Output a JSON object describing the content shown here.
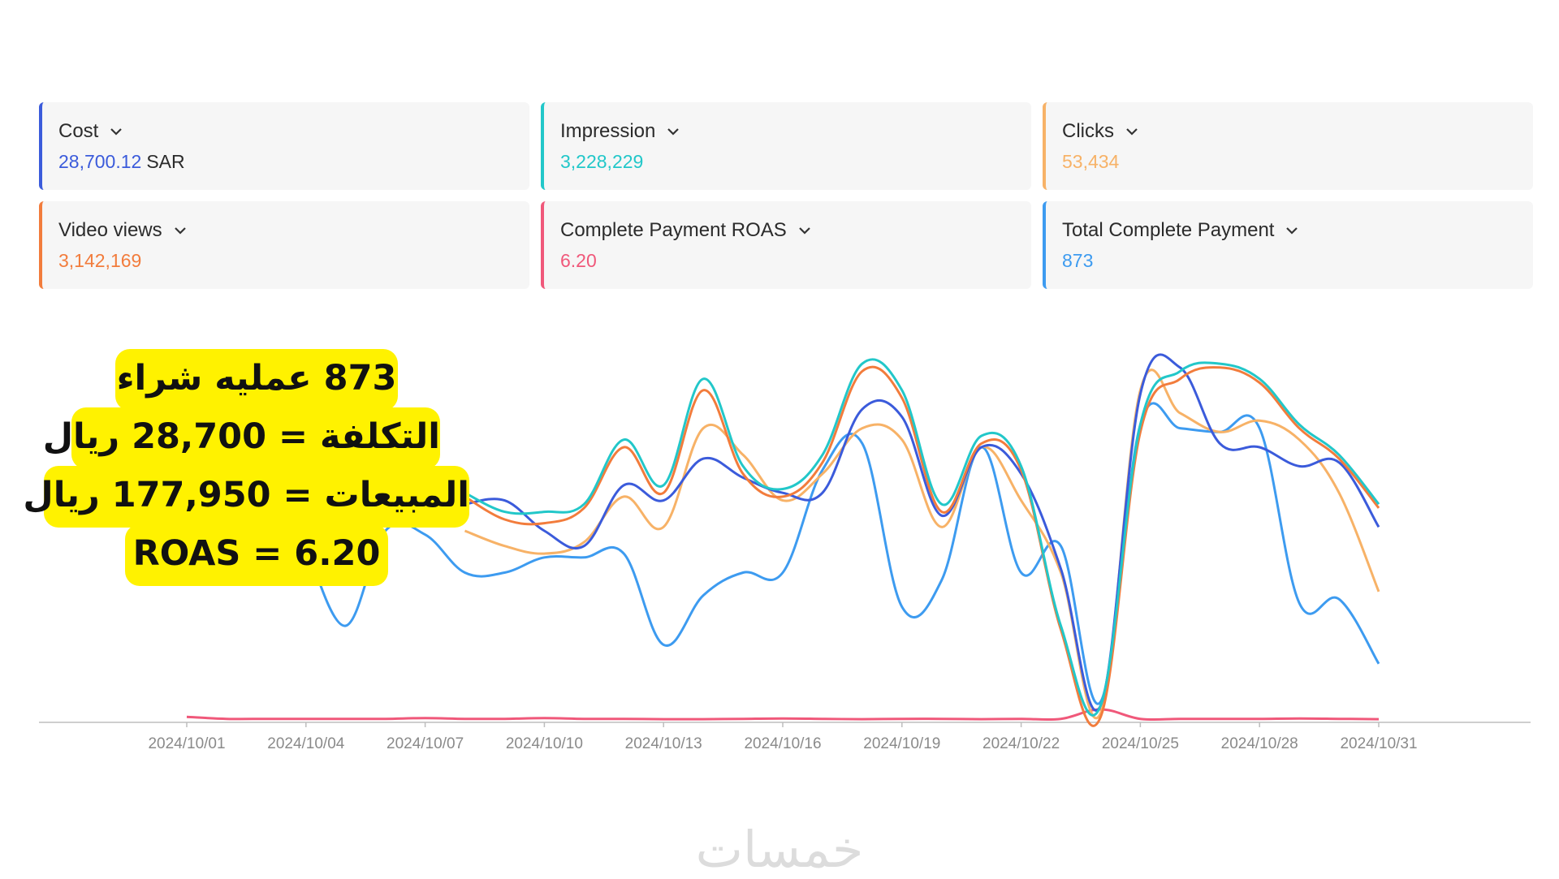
{
  "metrics": [
    {
      "label": "Cost",
      "value": "28,700.12",
      "unit": "SAR",
      "color": "#3b5bdb"
    },
    {
      "label": "Impression",
      "value": "3,228,229",
      "unit": "",
      "color": "#22c7c9"
    },
    {
      "label": "Clicks",
      "value": "53,434",
      "unit": "",
      "color": "#f7b267"
    },
    {
      "label": "Video views",
      "value": "3,142,169",
      "unit": "",
      "color": "#f27c3c"
    },
    {
      "label": "Complete Payment ROAS",
      "value": "6.20",
      "unit": "",
      "color": "#f0587a"
    },
    {
      "label": "Total Complete Payment",
      "value": "873",
      "unit": "",
      "color": "#3d9bf0"
    }
  ],
  "annotation": {
    "line1": "873 عمليه شراء",
    "line2": "التكلفة = 28,700 ريال",
    "line3": "المبيعات = 177,950 ريال",
    "line4": "ROAS = 6.20"
  },
  "watermark": "خمسات",
  "chart_data": {
    "type": "line",
    "x_ticks": [
      "2024/10/01",
      "2024/10/04",
      "2024/10/07",
      "2024/10/10",
      "2024/10/13",
      "2024/10/16",
      "2024/10/19",
      "2024/10/22",
      "2024/10/25",
      "2024/10/28",
      "2024/10/31"
    ],
    "x": [
      "2024/10/01",
      "2024/10/02",
      "2024/10/03",
      "2024/10/04",
      "2024/10/05",
      "2024/10/06",
      "2024/10/07",
      "2024/10/08",
      "2024/10/09",
      "2024/10/10",
      "2024/10/11",
      "2024/10/12",
      "2024/10/13",
      "2024/10/14",
      "2024/10/15",
      "2024/10/16",
      "2024/10/17",
      "2024/10/18",
      "2024/10/19",
      "2024/10/20",
      "2024/10/21",
      "2024/10/22",
      "2024/10/23",
      "2024/10/24",
      "2024/10/25",
      "2024/10/26",
      "2024/10/27",
      "2024/10/28",
      "2024/10/29",
      "2024/10/30",
      "2024/10/31"
    ],
    "series": [
      {
        "name": "Impression",
        "color": "#22c7c9",
        "values": [
          null,
          null,
          null,
          null,
          null,
          null,
          null,
          0.6,
          0.55,
          0.55,
          0.57,
          0.74,
          0.62,
          0.9,
          0.67,
          0.61,
          0.7,
          0.94,
          0.87,
          0.57,
          0.75,
          0.67,
          0.25,
          0.04,
          0.78,
          0.92,
          0.94,
          0.9,
          0.78,
          0.7,
          0.57
        ]
      },
      {
        "name": "Video views",
        "color": "#f27c3c",
        "values": [
          null,
          null,
          null,
          null,
          null,
          null,
          null,
          0.59,
          0.53,
          0.52,
          0.56,
          0.72,
          0.6,
          0.87,
          0.65,
          0.59,
          0.68,
          0.92,
          0.85,
          0.55,
          0.73,
          0.66,
          0.24,
          0.01,
          0.76,
          0.9,
          0.93,
          0.89,
          0.77,
          0.69,
          0.56
        ]
      },
      {
        "name": "Cost",
        "color": "#3b5bdb",
        "values": [
          null,
          null,
          null,
          null,
          null,
          null,
          null,
          0.57,
          0.58,
          0.5,
          0.46,
          0.62,
          0.58,
          0.69,
          0.64,
          0.6,
          0.6,
          0.82,
          0.8,
          0.54,
          0.72,
          0.65,
          0.4,
          0.04,
          0.86,
          0.93,
          0.73,
          0.72,
          0.67,
          0.68,
          0.51
        ]
      },
      {
        "name": "Clicks",
        "color": "#f7b267",
        "values": [
          null,
          null,
          null,
          null,
          null,
          null,
          null,
          0.5,
          0.46,
          0.44,
          0.47,
          0.59,
          0.51,
          0.77,
          0.7,
          0.58,
          0.65,
          0.77,
          0.74,
          0.51,
          0.72,
          0.58,
          0.39,
          0.02,
          0.87,
          0.81,
          0.76,
          0.79,
          0.74,
          0.6,
          0.34
        ]
      },
      {
        "name": "Total Complete Payment",
        "color": "#3d9bf0",
        "values": [
          null,
          null,
          null,
          0.46,
          0.25,
          0.5,
          0.49,
          0.39,
          0.39,
          0.43,
          0.43,
          0.44,
          0.2,
          0.33,
          0.39,
          0.39,
          0.66,
          0.73,
          0.3,
          0.37,
          0.72,
          0.39,
          0.46,
          0.05,
          0.78,
          0.77,
          0.76,
          0.77,
          0.31,
          0.32,
          0.15
        ]
      },
      {
        "name": "Complete Payment ROAS",
        "color": "#f0587a",
        "values": [
          0.01,
          0.005,
          0.005,
          0.005,
          0.005,
          0.005,
          0.007,
          0.005,
          0.005,
          0.007,
          0.005,
          0.005,
          0.004,
          0.004,
          0.005,
          0.006,
          0.005,
          0.004,
          0.005,
          0.005,
          0.004,
          0.005,
          0.005,
          0.03,
          0.005,
          0.005,
          0.005,
          0.005,
          0.006,
          0.005,
          0.004
        ]
      }
    ]
  }
}
